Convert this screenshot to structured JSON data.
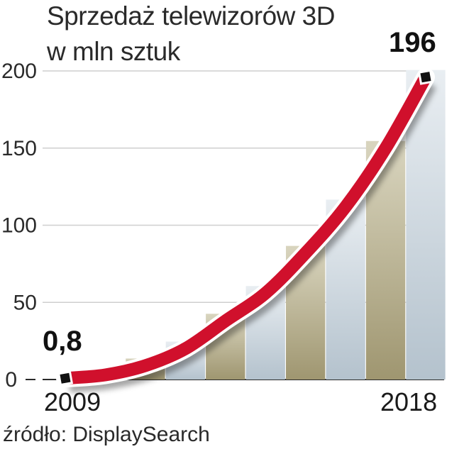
{
  "chart_data": {
    "type": "line",
    "title_lines": [
      "Sprzedaż telewizorów 3D",
      "w mln sztuk"
    ],
    "x_start_label": "2009",
    "x_end_label": "2018",
    "y_ticks": [
      0,
      50,
      100,
      150,
      200
    ],
    "ylim": [
      0,
      200
    ],
    "grid": true,
    "series": [
      {
        "x": [
          2009,
          2010,
          2011,
          2012,
          2013,
          2014,
          2015,
          2016,
          2017,
          2018
        ],
        "values": [
          0.8,
          3,
          9,
          20,
          38,
          56,
          82,
          112,
          150,
          196
        ]
      }
    ],
    "start_value_label": "0,8",
    "end_value_label": "196",
    "source": "źródło: DisplaySearch",
    "colors": {
      "line": "#d0102c",
      "bar_olive": "#b3ac86",
      "bar_blue": "#c4d0d9",
      "text": "#1a1a1a"
    }
  }
}
